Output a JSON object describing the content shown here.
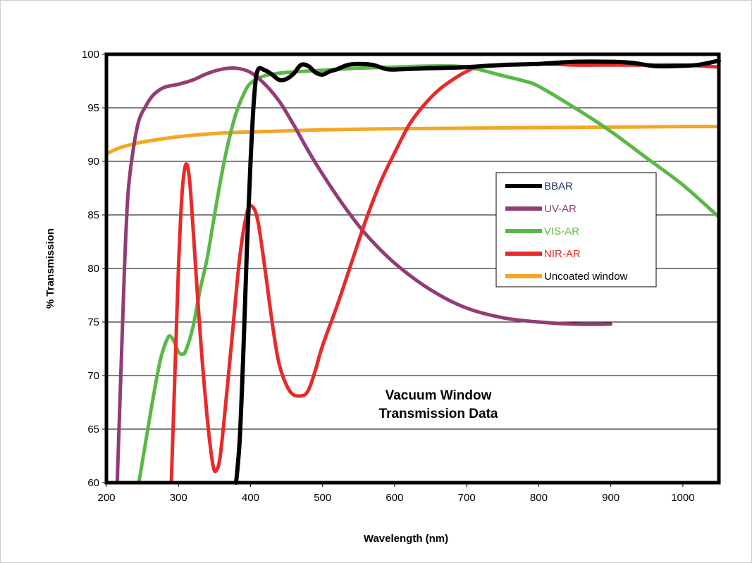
{
  "chart_data": {
    "type": "line",
    "title": "",
    "annotation": [
      "Vacuum Window",
      "Transmission Data"
    ],
    "xlabel": "Wavelength (nm)",
    "ylabel": "% Transmission",
    "xlim": [
      200,
      1050
    ],
    "ylim": [
      60,
      100
    ],
    "x_ticks": [
      200,
      300,
      400,
      500,
      600,
      700,
      800,
      900,
      1000
    ],
    "y_ticks": [
      60,
      65,
      70,
      75,
      80,
      85,
      90,
      95,
      100
    ],
    "grid": "horizontal",
    "legend_position": "right",
    "series": [
      {
        "name": "BBAR",
        "color": "#000000",
        "points": [
          [
            380,
            60
          ],
          [
            385,
            64
          ],
          [
            390,
            72
          ],
          [
            395,
            82
          ],
          [
            400,
            90
          ],
          [
            405,
            96
          ],
          [
            410,
            98.5
          ],
          [
            420,
            98.5
          ],
          [
            430,
            98.1
          ],
          [
            440,
            97.6
          ],
          [
            450,
            97.7
          ],
          [
            460,
            98.2
          ],
          [
            470,
            99.0
          ],
          [
            480,
            98.9
          ],
          [
            490,
            98.3
          ],
          [
            500,
            98.1
          ],
          [
            510,
            98.4
          ],
          [
            520,
            98.6
          ],
          [
            535,
            99.0
          ],
          [
            550,
            99.1
          ],
          [
            570,
            99.0
          ],
          [
            590,
            98.6
          ],
          [
            610,
            98.6
          ],
          [
            650,
            98.7
          ],
          [
            700,
            98.8
          ],
          [
            750,
            99.0
          ],
          [
            800,
            99.1
          ],
          [
            850,
            99.3
          ],
          [
            900,
            99.3
          ],
          [
            930,
            99.2
          ],
          [
            960,
            98.9
          ],
          [
            990,
            98.9
          ],
          [
            1020,
            99.0
          ],
          [
            1050,
            99.4
          ]
        ]
      },
      {
        "name": "UV-AR",
        "color": "#923c76",
        "points": [
          [
            215,
            60
          ],
          [
            220,
            70
          ],
          [
            225,
            80
          ],
          [
            230,
            87
          ],
          [
            237,
            91
          ],
          [
            245,
            93.8
          ],
          [
            255,
            95.2
          ],
          [
            265,
            96.2
          ],
          [
            280,
            96.9
          ],
          [
            300,
            97.2
          ],
          [
            320,
            97.6
          ],
          [
            340,
            98.2
          ],
          [
            360,
            98.6
          ],
          [
            380,
            98.7
          ],
          [
            400,
            98.3
          ],
          [
            420,
            97.2
          ],
          [
            440,
            95.6
          ],
          [
            460,
            93.4
          ],
          [
            480,
            91.0
          ],
          [
            500,
            88.8
          ],
          [
            530,
            85.8
          ],
          [
            560,
            83.2
          ],
          [
            600,
            80.5
          ],
          [
            650,
            78.0
          ],
          [
            700,
            76.3
          ],
          [
            750,
            75.4
          ],
          [
            800,
            75.0
          ],
          [
            850,
            74.8
          ],
          [
            900,
            74.8
          ]
        ]
      },
      {
        "name": "VIS-AR",
        "color": "#5bb848",
        "points": [
          [
            245,
            60
          ],
          [
            255,
            64
          ],
          [
            265,
            68
          ],
          [
            275,
            71.5
          ],
          [
            285,
            73.5
          ],
          [
            290,
            73.6
          ],
          [
            295,
            73.0
          ],
          [
            300,
            72.2
          ],
          [
            305,
            72.0
          ],
          [
            310,
            72.3
          ],
          [
            320,
            74.5
          ],
          [
            330,
            78
          ],
          [
            340,
            81
          ],
          [
            350,
            85
          ],
          [
            360,
            88.8
          ],
          [
            370,
            92.0
          ],
          [
            380,
            94.5
          ],
          [
            390,
            96.2
          ],
          [
            400,
            97.3
          ],
          [
            420,
            98.0
          ],
          [
            450,
            98.3
          ],
          [
            500,
            98.5
          ],
          [
            550,
            98.7
          ],
          [
            600,
            98.8
          ],
          [
            650,
            98.9
          ],
          [
            700,
            98.8
          ],
          [
            750,
            98.0
          ],
          [
            780,
            97.5
          ],
          [
            800,
            97.0
          ],
          [
            850,
            95.0
          ],
          [
            900,
            92.8
          ],
          [
            950,
            90.3
          ],
          [
            1000,
            87.8
          ],
          [
            1050,
            84.8
          ]
        ]
      },
      {
        "name": "NIR-AR",
        "color": "#e82a2a",
        "points": [
          [
            290,
            60
          ],
          [
            295,
            70
          ],
          [
            300,
            80
          ],
          [
            305,
            87
          ],
          [
            310,
            89.7
          ],
          [
            315,
            88.5
          ],
          [
            320,
            84
          ],
          [
            330,
            74
          ],
          [
            340,
            66
          ],
          [
            348,
            61.6
          ],
          [
            353,
            61.2
          ],
          [
            358,
            62.5
          ],
          [
            365,
            67
          ],
          [
            375,
            74
          ],
          [
            385,
            81
          ],
          [
            395,
            85.2
          ],
          [
            402,
            85.8
          ],
          [
            410,
            84.5
          ],
          [
            420,
            80
          ],
          [
            430,
            75
          ],
          [
            440,
            71
          ],
          [
            455,
            68.5
          ],
          [
            470,
            68.1
          ],
          [
            480,
            68.6
          ],
          [
            490,
            70.5
          ],
          [
            500,
            72.8
          ],
          [
            520,
            76.5
          ],
          [
            540,
            80.5
          ],
          [
            560,
            84.5
          ],
          [
            580,
            88.0
          ],
          [
            600,
            90.8
          ],
          [
            620,
            93.4
          ],
          [
            640,
            95.2
          ],
          [
            660,
            96.6
          ],
          [
            680,
            97.6
          ],
          [
            700,
            98.4
          ],
          [
            720,
            98.9
          ],
          [
            750,
            99.0
          ],
          [
            800,
            99.1
          ],
          [
            850,
            99.0
          ],
          [
            900,
            99.0
          ],
          [
            950,
            99.0
          ],
          [
            1000,
            99.0
          ],
          [
            1050,
            98.8
          ]
        ]
      },
      {
        "name": "Uncoated window",
        "color": "#f5a623",
        "points": [
          [
            200,
            90.7
          ],
          [
            220,
            91.3
          ],
          [
            250,
            91.8
          ],
          [
            300,
            92.3
          ],
          [
            350,
            92.6
          ],
          [
            400,
            92.75
          ],
          [
            450,
            92.85
          ],
          [
            500,
            92.95
          ],
          [
            600,
            93.05
          ],
          [
            700,
            93.1
          ],
          [
            800,
            93.15
          ],
          [
            900,
            93.2
          ],
          [
            1000,
            93.25
          ],
          [
            1050,
            93.25
          ]
        ]
      }
    ]
  }
}
